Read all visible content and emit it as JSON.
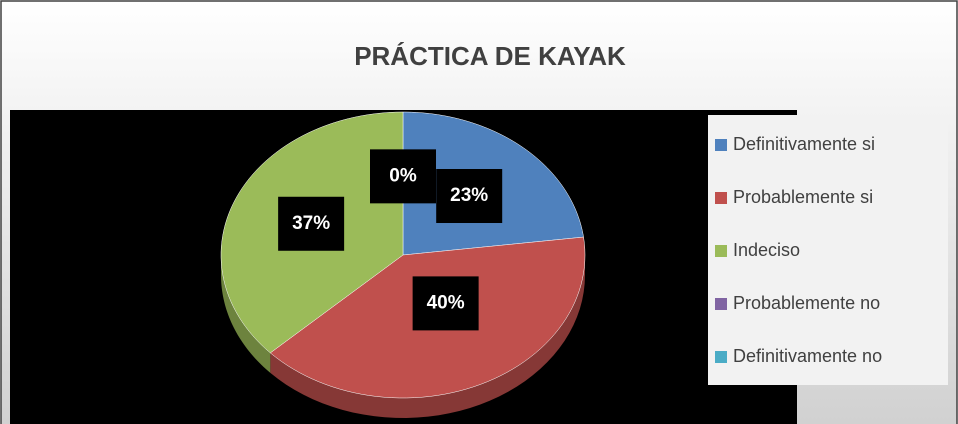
{
  "chart_data": {
    "type": "pie",
    "title": "PRÁCTICA DE KAYAK",
    "categories": [
      "Definitivamente si",
      "Probablemente si",
      "Indeciso",
      "Probablemente no",
      "Definitivamente no"
    ],
    "values": [
      23,
      40,
      37,
      0,
      0
    ],
    "value_labels": [
      "23%",
      "40%",
      "37%",
      "0%",
      null
    ],
    "colors": [
      "#4f81bd",
      "#c0504d",
      "#9bbb59",
      "#8064a2",
      "#4bacc6"
    ],
    "legend": "right"
  }
}
